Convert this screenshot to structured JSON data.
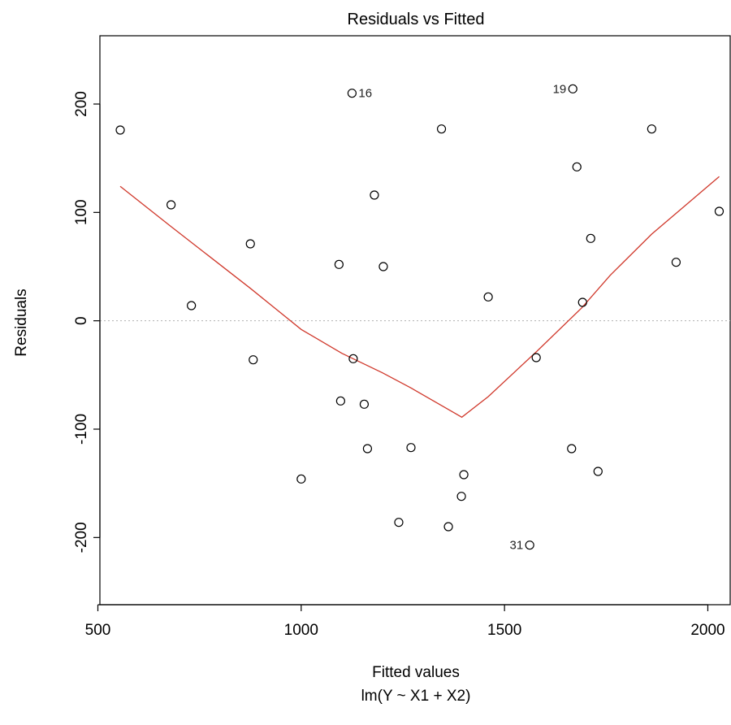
{
  "chart_data": {
    "type": "scatter",
    "title": "Residuals vs Fitted",
    "xlabel": "Fitted values",
    "subtitle": "lm(Y ~ X1 + X2)",
    "ylabel": "Residuals",
    "xlim": [
      505,
      2055
    ],
    "ylim": [
      -262,
      263
    ],
    "x_ticks": [
      500,
      1000,
      1500,
      2000
    ],
    "y_ticks": [
      -200,
      -100,
      0,
      100,
      200
    ],
    "grid": false,
    "colors": {
      "points": "#000000",
      "smooth_line": "#d0382b",
      "zero_line": "#b0b0b0"
    },
    "points": [
      {
        "x": 555,
        "y": 176
      },
      {
        "x": 680,
        "y": 107
      },
      {
        "x": 730,
        "y": 14
      },
      {
        "x": 875,
        "y": 71
      },
      {
        "x": 882,
        "y": -36
      },
      {
        "x": 1000,
        "y": -146
      },
      {
        "x": 1093,
        "y": 52
      },
      {
        "x": 1097,
        "y": -74
      },
      {
        "x": 1125,
        "y": 210,
        "label": "16"
      },
      {
        "x": 1128,
        "y": -35
      },
      {
        "x": 1155,
        "y": -77
      },
      {
        "x": 1163,
        "y": -118
      },
      {
        "x": 1180,
        "y": 116
      },
      {
        "x": 1202,
        "y": 50
      },
      {
        "x": 1240,
        "y": -186
      },
      {
        "x": 1270,
        "y": -117
      },
      {
        "x": 1345,
        "y": 177
      },
      {
        "x": 1362,
        "y": -190
      },
      {
        "x": 1394,
        "y": -162
      },
      {
        "x": 1400,
        "y": -142
      },
      {
        "x": 1460,
        "y": 22
      },
      {
        "x": 1562,
        "y": -207,
        "label": "31"
      },
      {
        "x": 1578,
        "y": -34
      },
      {
        "x": 1665,
        "y": -118
      },
      {
        "x": 1668,
        "y": 214,
        "label": "19"
      },
      {
        "x": 1678,
        "y": 142
      },
      {
        "x": 1692,
        "y": 17
      },
      {
        "x": 1712,
        "y": 76
      },
      {
        "x": 1730,
        "y": -139
      },
      {
        "x": 1862,
        "y": 177
      },
      {
        "x": 1922,
        "y": 54
      },
      {
        "x": 2028,
        "y": 101
      }
    ],
    "smooth_line": [
      {
        "x": 555,
        "y": 124
      },
      {
        "x": 680,
        "y": 87
      },
      {
        "x": 875,
        "y": 30
      },
      {
        "x": 1000,
        "y": -8
      },
      {
        "x": 1100,
        "y": -30
      },
      {
        "x": 1200,
        "y": -48
      },
      {
        "x": 1270,
        "y": -62
      },
      {
        "x": 1395,
        "y": -89
      },
      {
        "x": 1460,
        "y": -70
      },
      {
        "x": 1580,
        "y": -28
      },
      {
        "x": 1690,
        "y": 12
      },
      {
        "x": 1760,
        "y": 42
      },
      {
        "x": 1862,
        "y": 80
      },
      {
        "x": 2028,
        "y": 133
      }
    ]
  }
}
